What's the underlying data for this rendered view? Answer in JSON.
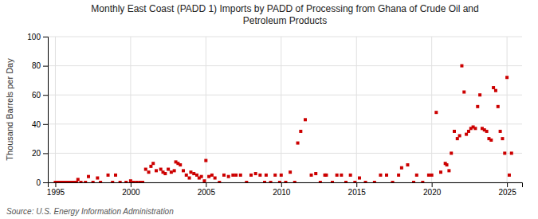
{
  "chart_data": {
    "type": "scatter",
    "title": "Monthly East Coast (PADD 1) Imports by PADD of Processing from Ghana of Crude Oil and\nPetroleum Products",
    "ylabel": "Thousand Barrels per Day",
    "source": "Source: U.S. Energy Information Administration",
    "xlim": [
      1994.5,
      2026
    ],
    "ylim": [
      0,
      100
    ],
    "xticks": [
      1995,
      2000,
      2005,
      2010,
      2015,
      2020,
      2025
    ],
    "yticks": [
      0,
      20,
      40,
      60,
      80,
      100
    ],
    "grid": true,
    "color": "#cc0000",
    "marker": "square",
    "x": [
      1995.0,
      1995.1,
      1995.2,
      1995.3,
      1995.4,
      1995.5,
      1995.6,
      1995.7,
      1995.8,
      1995.9,
      1996.0,
      1996.1,
      1996.2,
      1996.3,
      1996.4,
      1996.5,
      1996.7,
      1997.0,
      1997.2,
      1997.5,
      1997.8,
      1998.0,
      1998.5,
      1998.8,
      1999.0,
      1999.3,
      1999.7,
      2000.0,
      2000.2,
      2000.4,
      2000.6,
      2000.8,
      2001.0,
      2001.2,
      2001.35,
      2001.5,
      2001.7,
      2002.0,
      2002.15,
      2002.3,
      2002.5,
      2002.7,
      2002.9,
      2003.0,
      2003.15,
      2003.3,
      2003.5,
      2003.7,
      2003.9,
      2004.0,
      2004.2,
      2004.4,
      2004.55,
      2004.7,
      2004.9,
      2005.0,
      2005.2,
      2005.4,
      2005.6,
      2005.9,
      2006.2,
      2006.5,
      2006.8,
      2007.0,
      2007.3,
      2007.7,
      2008.0,
      2008.3,
      2008.6,
      2008.9,
      2009.0,
      2009.3,
      2009.6,
      2009.9,
      2010.0,
      2010.3,
      2010.6,
      2010.9,
      2011.1,
      2011.3,
      2011.6,
      2012.0,
      2012.3,
      2012.6,
      2012.9,
      2013.0,
      2013.4,
      2013.7,
      2014.0,
      2014.3,
      2014.6,
      2014.9,
      2015.2,
      2015.6,
      2016.2,
      2016.6,
      2017.0,
      2017.4,
      2017.8,
      2018.0,
      2018.4,
      2018.8,
      2019.0,
      2019.4,
      2019.8,
      2020.0,
      2020.3,
      2020.6,
      2020.9,
      2021.0,
      2021.15,
      2021.3,
      2021.5,
      2021.7,
      2021.85,
      2022.0,
      2022.15,
      2022.3,
      2022.45,
      2022.6,
      2022.75,
      2022.9,
      2023.05,
      2023.2,
      2023.35,
      2023.5,
      2023.65,
      2023.8,
      2023.95,
      2024.1,
      2024.25,
      2024.4,
      2024.55,
      2024.7,
      2024.85,
      2025.0,
      2025.15,
      2025.3
    ],
    "values": [
      0,
      0,
      0,
      0,
      0,
      0,
      0,
      0,
      0,
      0,
      0,
      0,
      0,
      0,
      0,
      2,
      0,
      0,
      4,
      0,
      3,
      0,
      5,
      0,
      5,
      0,
      0,
      1,
      0,
      0,
      0,
      0,
      9,
      7,
      11,
      13,
      8,
      9,
      7,
      6,
      9,
      7,
      8,
      14,
      13,
      12,
      8,
      5,
      3,
      7,
      6,
      5,
      3,
      4,
      1,
      15,
      4,
      5,
      3,
      0,
      5,
      4,
      5,
      5,
      5,
      0,
      5,
      6,
      5,
      0,
      5,
      0,
      5,
      0,
      5,
      0,
      7,
      0,
      27,
      35,
      43,
      5,
      6,
      0,
      5,
      5,
      0,
      5,
      5,
      0,
      5,
      0,
      3,
      0,
      0,
      5,
      5,
      0,
      5,
      10,
      12,
      0,
      5,
      0,
      5,
      5,
      48,
      7,
      13,
      12,
      8,
      20,
      35,
      30,
      32,
      80,
      62,
      33,
      35,
      37,
      38,
      37,
      52,
      60,
      37,
      36,
      35,
      30,
      29,
      65,
      63,
      52,
      35,
      30,
      20,
      72,
      5,
      20
    ]
  }
}
